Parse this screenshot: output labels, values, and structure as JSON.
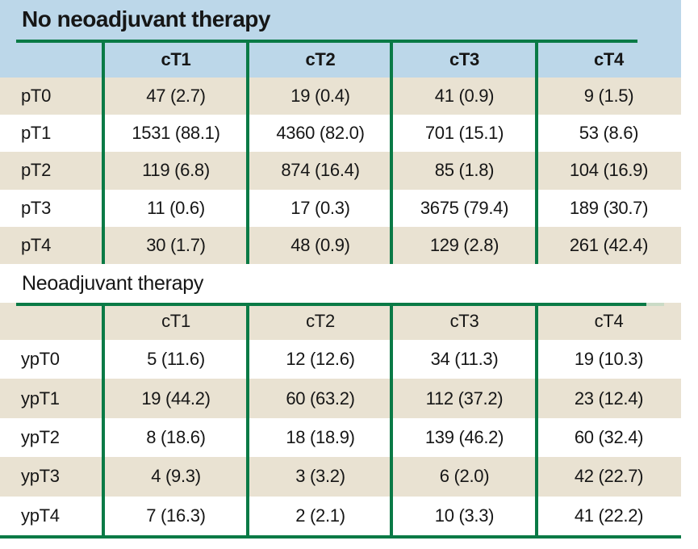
{
  "colors": {
    "header_blue": "#bcd7e9",
    "row_beige": "#e9e2d2",
    "row_white": "#ffffff",
    "rule_green": "#0a7a46",
    "rule_green_pale": "#cadbc6",
    "text": "#161616"
  },
  "table1": {
    "title": "No neoadjuvant therapy",
    "columns": [
      "cT1",
      "cT2",
      "cT3",
      "cT4"
    ],
    "rows": [
      {
        "label": "pT0",
        "values": [
          "47 (2.7)",
          "19 (0.4)",
          "41 (0.9)",
          "9 (1.5)"
        ]
      },
      {
        "label": "pT1",
        "values": [
          "1531 (88.1)",
          "4360 (82.0)",
          "701 (15.1)",
          "53 (8.6)"
        ]
      },
      {
        "label": "pT2",
        "values": [
          "119 (6.8)",
          "874 (16.4)",
          "85 (1.8)",
          "104 (16.9)"
        ]
      },
      {
        "label": "pT3",
        "values": [
          "11 (0.6)",
          "17 (0.3)",
          "3675 (79.4)",
          "189 (30.7)"
        ]
      },
      {
        "label": "pT4",
        "values": [
          "30 (1.7)",
          "48 (0.9)",
          "129 (2.8)",
          "261 (42.4)"
        ]
      }
    ]
  },
  "table2": {
    "title": "Neoadjuvant therapy",
    "columns": [
      "cT1",
      "cT2",
      "cT3",
      "cT4"
    ],
    "rows": [
      {
        "label": "ypT0",
        "values": [
          "5 (11.6)",
          "12 (12.6)",
          "34 (11.3)",
          "19 (10.3)"
        ]
      },
      {
        "label": "ypT1",
        "values": [
          "19 (44.2)",
          "60 (63.2)",
          "112 (37.2)",
          "23 (12.4)"
        ]
      },
      {
        "label": "ypT2",
        "values": [
          "8 (18.6)",
          "18 (18.9)",
          "139 (46.2)",
          "60 (32.4)"
        ]
      },
      {
        "label": "ypT3",
        "values": [
          "4 (9.3)",
          "3 (3.2)",
          "6 (2.0)",
          "42 (22.7)"
        ]
      },
      {
        "label": "ypT4",
        "values": [
          "7 (16.3)",
          "2 (2.1)",
          "10 (3.3)",
          "41 (22.2)"
        ]
      }
    ]
  },
  "chart_data": {
    "type": "table",
    "tables": [
      {
        "title": "No neoadjuvant therapy",
        "columns": [
          "",
          "cT1",
          "cT2",
          "cT3",
          "cT4"
        ],
        "rows": [
          [
            "pT0",
            "47 (2.7)",
            "19 (0.4)",
            "41 (0.9)",
            "9 (1.5)"
          ],
          [
            "pT1",
            "1531 (88.1)",
            "4360 (82.0)",
            "701 (15.1)",
            "53 (8.6)"
          ],
          [
            "pT2",
            "119 (6.8)",
            "874 (16.4)",
            "85 (1.8)",
            "104 (16.9)"
          ],
          [
            "pT3",
            "11 (0.6)",
            "17 (0.3)",
            "3675 (79.4)",
            "189 (30.7)"
          ],
          [
            "pT4",
            "30 (1.7)",
            "48 (0.9)",
            "129 (2.8)",
            "261 (42.4)"
          ]
        ]
      },
      {
        "title": "Neoadjuvant therapy",
        "columns": [
          "",
          "cT1",
          "cT2",
          "cT3",
          "cT4"
        ],
        "rows": [
          [
            "ypT0",
            "5 (11.6)",
            "12 (12.6)",
            "34 (11.3)",
            "19 (10.3)"
          ],
          [
            "ypT1",
            "19 (44.2)",
            "60 (63.2)",
            "112 (37.2)",
            "23 (12.4)"
          ],
          [
            "ypT2",
            "8 (18.6)",
            "18 (18.9)",
            "139 (46.2)",
            "60 (32.4)"
          ],
          [
            "ypT3",
            "4 (9.3)",
            "3 (3.2)",
            "6 (2.0)",
            "42 (22.7)"
          ],
          [
            "ypT4",
            "7 (16.3)",
            "2 (2.1)",
            "10 (3.3)",
            "41 (22.2)"
          ]
        ]
      }
    ]
  }
}
